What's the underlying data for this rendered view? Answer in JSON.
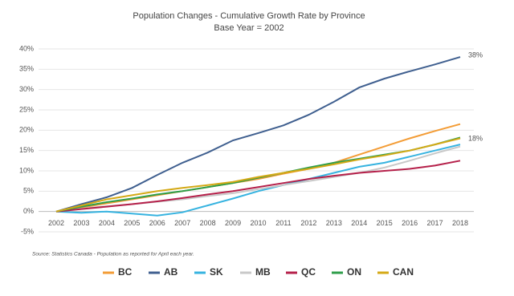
{
  "chart_data": {
    "type": "line",
    "title": "Population Changes - Cumulative Growth Rate by Province",
    "subtitle": "Base Year = 2002",
    "x": [
      2002,
      2003,
      2004,
      2005,
      2006,
      2007,
      2008,
      2009,
      2010,
      2011,
      2012,
      2013,
      2014,
      2015,
      2016,
      2017,
      2018
    ],
    "xlim": [
      2002,
      2018
    ],
    "ylim": [
      -5,
      40
    ],
    "yticks": [
      {
        "value": -5,
        "label": "-5%"
      },
      {
        "value": 0,
        "label": "0%"
      },
      {
        "value": 5,
        "label": "5%"
      },
      {
        "value": 10,
        "label": "10%"
      },
      {
        "value": 15,
        "label": "15%"
      },
      {
        "value": 20,
        "label": "20%"
      },
      {
        "value": 25,
        "label": "25%"
      },
      {
        "value": 30,
        "label": "30%"
      },
      {
        "value": 35,
        "label": "35%"
      },
      {
        "value": 40,
        "label": "40%"
      }
    ],
    "grid": true,
    "legend": "bottom",
    "series": [
      {
        "name": "BC",
        "color": "#f39c35",
        "values": [
          0,
          1,
          2,
          3,
          4,
          5,
          6,
          7,
          8,
          9.3,
          10.5,
          12,
          14,
          16,
          18,
          19.8,
          21.5
        ]
      },
      {
        "name": "AB",
        "color": "#3f5f8f",
        "values": [
          0,
          1.8,
          3.5,
          5.8,
          9,
          12,
          14.5,
          17.5,
          19.3,
          21.2,
          23.8,
          27,
          30.5,
          32.7,
          34.5,
          36.2,
          38
        ]
      },
      {
        "name": "SK",
        "color": "#36b3e0",
        "values": [
          0,
          -0.3,
          0,
          -0.5,
          -1,
          -0.2,
          1.5,
          3.2,
          5,
          6.5,
          8,
          9.5,
          11,
          12,
          13.5,
          15,
          16.5
        ]
      },
      {
        "name": "MB",
        "color": "#c8c8c8",
        "values": [
          0,
          0.7,
          1.3,
          1.8,
          2.4,
          3,
          3.8,
          4.5,
          5.5,
          6.5,
          7.5,
          8.5,
          9.5,
          10.8,
          12.5,
          14.3,
          16
        ]
      },
      {
        "name": "QC",
        "color": "#b5204a",
        "values": [
          0,
          0.6,
          1.2,
          1.8,
          2.5,
          3.3,
          4.2,
          5,
          6,
          7,
          8,
          8.8,
          9.5,
          10,
          10.5,
          11.3,
          12.5
        ]
      },
      {
        "name": "ON",
        "color": "#2e9e4a",
        "values": [
          0,
          1.2,
          2.3,
          3.2,
          4.2,
          5,
          6,
          7,
          8.3,
          9.5,
          10.8,
          12,
          13,
          14,
          15,
          16.5,
          18.2
        ]
      },
      {
        "name": "CAN",
        "color": "#d4a916",
        "values": [
          0,
          1.5,
          3,
          4,
          5,
          5.8,
          6.5,
          7.3,
          8.5,
          9.5,
          10.5,
          11.6,
          12.8,
          13.8,
          15,
          16.5,
          18
        ]
      }
    ],
    "annotations": [
      "38%",
      "18%"
    ],
    "source": "Source: Statistics Canada - Population as reported for April each year."
  }
}
